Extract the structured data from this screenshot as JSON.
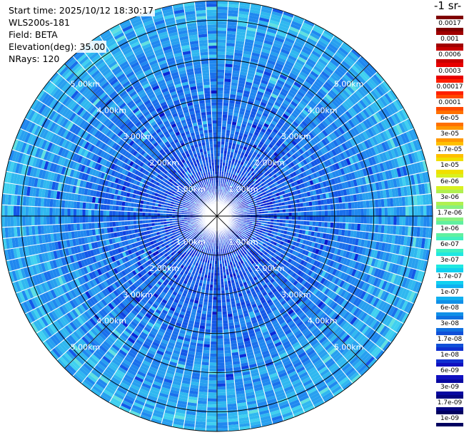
{
  "header": {
    "start_time": "Start time: 2025/10/12 18:30:17",
    "device": "WLS200s-181",
    "field": "Field: BETA",
    "elevation": "Elevation(deg): 35.00",
    "nrays": "NRays: 120"
  },
  "colorbar": {
    "title": "-1 sr-",
    "ticks": [
      "0.0017",
      "0.001",
      "0.0006",
      "0.0003",
      "0.00017",
      "0.0001",
      "6e-05",
      "3e-05",
      "1.7e-05",
      "1e-05",
      "6e-06",
      "3e-06",
      "1.7e-06",
      "1e-06",
      "6e-07",
      "3e-07",
      "1.7e-07",
      "1e-07",
      "6e-08",
      "3e-08",
      "1.7e-08",
      "1e-08",
      "6e-09",
      "3e-09",
      "1.7e-09",
      "1e-09"
    ],
    "colors": [
      "#7f0000",
      "#a00000",
      "#c80000",
      "#e80000",
      "#ff2000",
      "#ff4800",
      "#ff7000",
      "#ff9800",
      "#ffc000",
      "#f0e000",
      "#d8f020",
      "#b0f050",
      "#88f080",
      "#60f0a0",
      "#40f0c0",
      "#20e8e0",
      "#10d0f0",
      "#10b0f0",
      "#1090e8",
      "#1070e0",
      "#1050d8",
      "#1030d0",
      "#1010c0",
      "#0808a0",
      "#040480",
      "#000060"
    ]
  },
  "chart_data": {
    "type": "heatmap",
    "projection": "polar-ppi",
    "field": "BETA",
    "elevation_deg": 35.0,
    "n_rays": 120,
    "range_rings_km": [
      1,
      2,
      3,
      4,
      5
    ],
    "ring_labels": [
      "1.00km",
      "2.00km",
      "3.00km",
      "4.00km",
      "5.00km"
    ],
    "max_range_km": 5.5,
    "color_scale": "log",
    "value_range": [
      1e-09,
      0.0017
    ],
    "typical_value_near_km": 1e-08,
    "typical_value_far_km": 8e-08
  }
}
